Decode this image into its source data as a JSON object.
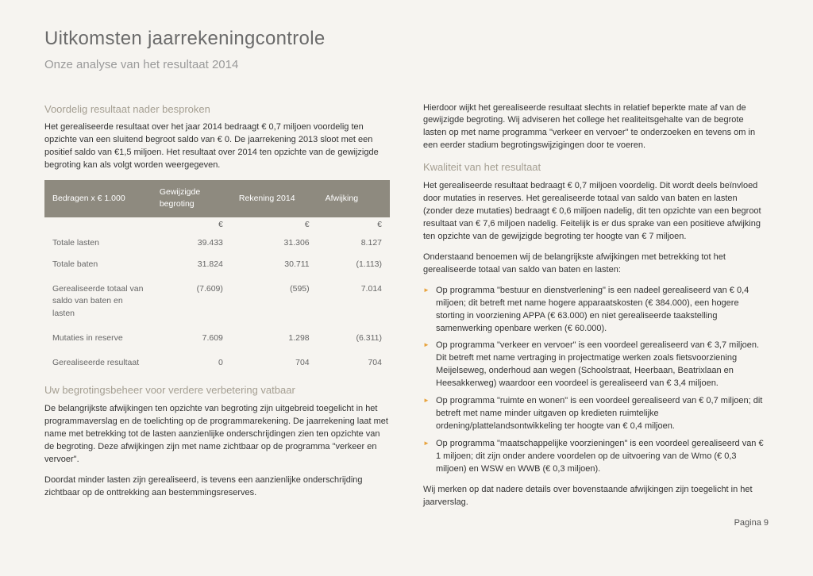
{
  "title": "Uitkomsten jaarrekeningcontrole",
  "subtitle": "Onze analyse van het resultaat 2014",
  "left": {
    "sec1_title": "Voordelig resultaat nader besproken",
    "sec1_p1": "Het gerealiseerde resultaat over het jaar 2014 bedraagt € 0,7 miljoen voordelig ten opzichte van een sluitend begroot saldo van € 0. De jaarrekening 2013 sloot met een positief saldo van €1,5 miljoen. Het resultaat over 2014 ten opzichte van de gewijzigde begroting kan als volgt worden weergegeven.",
    "table": {
      "headers": [
        "Bedragen x € 1.000",
        "Gewijzigde begroting",
        "Rekening 2014",
        "Afwijking"
      ],
      "cur": "€",
      "rows": [
        {
          "label": "Totale lasten",
          "c1": "39.433",
          "c2": "31.306",
          "c3": "8.127"
        },
        {
          "label": "Totale baten",
          "c1": "31.824",
          "c2": "30.711",
          "c3": "(1.113)"
        },
        {
          "label": "Gerealiseerde totaal van saldo van baten en lasten",
          "c1": "(7.609)",
          "c2": "(595)",
          "c3": "7.014",
          "gap": true
        },
        {
          "label": "Mutaties in reserve",
          "c1": "7.609",
          "c2": "1.298",
          "c3": "(6.311)",
          "gap": true
        },
        {
          "label": "Gerealiseerde resultaat",
          "c1": "0",
          "c2": "704",
          "c3": "704",
          "gap": true
        }
      ]
    },
    "sec2_title": "Uw begrotingsbeheer voor verdere verbetering vatbaar",
    "sec2_p1": "De belangrijkste afwijkingen ten opzichte van begroting zijn uitgebreid toegelicht in het programmaverslag en de toelichting op de programmarekening. De jaarrekening laat met name met betrekking tot de lasten aanzienlijke onderschrijdingen zien ten opzichte van de begroting. Deze afwijkingen zijn met name zichtbaar op de programma \"verkeer en vervoer\".",
    "sec2_p2": "Doordat minder lasten zijn gerealiseerd, is tevens een aanzienlijke onderschrijding zichtbaar op de onttrekking aan bestemmingsreserves."
  },
  "right": {
    "p0": "Hierdoor wijkt het gerealiseerde resultaat slechts in relatief beperkte mate af van de gewijzigde begroting. Wij adviseren het college het realiteitsgehalte van de begrote lasten op met name programma \"verkeer en vervoer\" te onderzoeken en tevens om in een eerder stadium begrotingswijzigingen door te voeren.",
    "sec3_title": "Kwaliteit van het resultaat",
    "p1": "Het gerealiseerde resultaat bedraagt € 0,7 miljoen voordelig. Dit wordt deels beïnvloed door mutaties in reserves. Het gerealiseerde totaal van saldo van baten en lasten (zonder deze mutaties) bedraagt € 0,6 miljoen nadelig, dit ten opzichte van een begroot resultaat van € 7,6 miljoen nadelig. Feitelijk is er dus sprake van een positieve afwijking ten opzichte van de gewijzigde begroting ter hoogte van € 7 miljoen.",
    "p2": "Onderstaand benoemen wij de belangrijkste afwijkingen met betrekking tot het gerealiseerde totaal van saldo van baten en lasten:",
    "bullets": [
      "Op programma \"bestuur en dienstverlening\" is een nadeel gerealiseerd van € 0,4 miljoen; dit betreft met name hogere apparaatskosten (€ 384.000), een hogere storting in voorziening APPA (€ 63.000) en niet gerealiseerde taakstelling samenwerking openbare werken (€ 60.000).",
      "Op programma \"verkeer en vervoer\" is een voordeel gerealiseerd van € 3,7 miljoen. Dit betreft met name vertraging in projectmatige werken zoals fietsvoorziening Meijelseweg, onderhoud aan wegen (Schoolstraat, Heerbaan, Beatrixlaan en Heesakkerweg) waardoor een voordeel is gerealiseerd van € 3,4 miljoen.",
      "Op programma \"ruimte en wonen\" is een voordeel gerealiseerd van € 0,7 miljoen; dit betreft met name minder uitgaven op kredieten ruimtelijke ordening/plattelandsontwikkeling ter hoogte van € 0,4 miljoen.",
      "Op programma \"maatschappelijke voorzieningen\" is een voordeel gerealiseerd van € 1 miljoen; dit zijn onder andere voordelen op de uitvoering van de Wmo (€ 0,3 miljoen) en WSW en WWB (€ 0,3 miljoen)."
    ],
    "p3": "Wij merken op dat nadere details over bovenstaande afwijkingen zijn toegelicht in het jaarverslag."
  },
  "page": "Pagina 9",
  "colors": {
    "header_bg": "#8e8a7f",
    "bullet": "#e8a33d"
  }
}
